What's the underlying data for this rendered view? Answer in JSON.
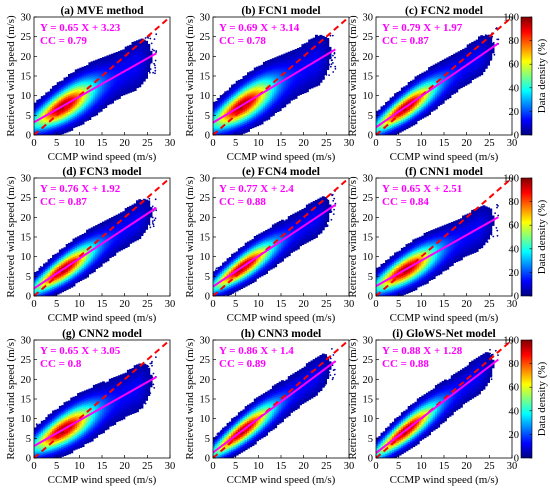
{
  "figure": {
    "colorbar_label": "Data density (%)",
    "colorbar_ticks": [
      "0",
      "20",
      "40",
      "60",
      "80",
      "100"
    ],
    "colorbar_range": [
      0,
      100
    ],
    "colormap": [
      "#00007f",
      "#0000ff",
      "#007fff",
      "#00ffff",
      "#7fff7f",
      "#ffff00",
      "#ff7f00",
      "#ff0000",
      "#7f0000"
    ],
    "fit_line_color": "#ff00ff",
    "one_to_one_color": "#ff0000",
    "annotation_color": "#ff00ff"
  },
  "chart_data": [
    {
      "type": "scatter",
      "title": "(a) MVE method",
      "xlabel": "CCMP wind speed (m/s)",
      "ylabel": "Retrieved wind speed (m/s)",
      "xlim": [
        0,
        30
      ],
      "ylim": [
        0,
        30
      ],
      "xticks": [
        "0",
        "5",
        "10",
        "15",
        "20",
        "25",
        "30"
      ],
      "yticks": [
        "0",
        "5",
        "10",
        "15",
        "20",
        "25",
        "30"
      ],
      "fit": {
        "slope": 0.65,
        "intercept": 3.23
      },
      "eq_text": "Y = 0.65 X + 3.23",
      "cc_text": "CC = 0.79",
      "spread": 2.6
    },
    {
      "type": "scatter",
      "title": "(b) FCN1 model",
      "xlabel": "CCMP wind speed (m/s)",
      "ylabel": "Retrieved wind speed (m/s)",
      "xlim": [
        0,
        30
      ],
      "ylim": [
        0,
        30
      ],
      "xticks": [
        "0",
        "5",
        "10",
        "15",
        "20",
        "25",
        "30"
      ],
      "yticks": [
        "0",
        "5",
        "10",
        "15",
        "20",
        "25",
        "30"
      ],
      "fit": {
        "slope": 0.69,
        "intercept": 3.14
      },
      "eq_text": "Y = 0.69 X + 3.14",
      "cc_text": "CC = 0.78",
      "spread": 2.7
    },
    {
      "type": "scatter",
      "title": "(c) FCN2 model",
      "xlabel": "CCMP wind speed (m/s)",
      "ylabel": "Retrieved wind speed (m/s)",
      "xlim": [
        0,
        30
      ],
      "ylim": [
        0,
        30
      ],
      "xticks": [
        "0",
        "5",
        "10",
        "15",
        "20",
        "25",
        "30"
      ],
      "yticks": [
        "0",
        "5",
        "10",
        "15",
        "20",
        "25",
        "30"
      ],
      "fit": {
        "slope": 0.79,
        "intercept": 1.97
      },
      "eq_text": "Y = 0.79 X + 1.97",
      "cc_text": "CC = 0.87",
      "spread": 2.1
    },
    {
      "type": "scatter",
      "title": "(d) FCN3 model",
      "xlabel": "CCMP wind speed (m/s)",
      "ylabel": "Retrieved wind speed (m/s)",
      "xlim": [
        0,
        30
      ],
      "ylim": [
        0,
        30
      ],
      "xticks": [
        "0",
        "5",
        "10",
        "15",
        "20",
        "25",
        "30"
      ],
      "yticks": [
        "0",
        "5",
        "10",
        "15",
        "20",
        "25",
        "30"
      ],
      "fit": {
        "slope": 0.76,
        "intercept": 1.92
      },
      "eq_text": "Y = 0.76 X + 1.92",
      "cc_text": "CC = 0.87",
      "spread": 2.1
    },
    {
      "type": "scatter",
      "title": "(e) FCN4 model",
      "xlabel": "CCMP wind speed (m/s)",
      "ylabel": "Retrieved wind speed (m/s)",
      "xlim": [
        0,
        30
      ],
      "ylim": [
        0,
        30
      ],
      "xticks": [
        "0",
        "5",
        "10",
        "15",
        "20",
        "25",
        "30"
      ],
      "yticks": [
        "0",
        "5",
        "10",
        "15",
        "20",
        "25",
        "30"
      ],
      "fit": {
        "slope": 0.77,
        "intercept": 2.4
      },
      "eq_text": "Y = 0.77 X + 2.4",
      "cc_text": "CC = 0.88",
      "spread": 2.0
    },
    {
      "type": "scatter",
      "title": "(f) CNN1 model",
      "xlabel": "CCMP wind speed (m/s)",
      "ylabel": "Retrieved wind speed (m/s)",
      "xlim": [
        0,
        30
      ],
      "ylim": [
        0,
        30
      ],
      "xticks": [
        "0",
        "5",
        "10",
        "15",
        "20",
        "25",
        "30"
      ],
      "yticks": [
        "0",
        "5",
        "10",
        "15",
        "20",
        "25",
        "30"
      ],
      "fit": {
        "slope": 0.65,
        "intercept": 2.51
      },
      "eq_text": "Y = 0.65 X + 2.51",
      "cc_text": "CC = 0.84",
      "spread": 2.3
    },
    {
      "type": "scatter",
      "title": "(g) CNN2 model",
      "xlabel": "CCMP wind speed (m/s)",
      "ylabel": "Retrieved wind speed (m/s)",
      "xlim": [
        0,
        30
      ],
      "ylim": [
        0,
        30
      ],
      "xticks": [
        "0",
        "5",
        "10",
        "15",
        "20",
        "25",
        "30"
      ],
      "yticks": [
        "0",
        "5",
        "10",
        "15",
        "20",
        "25",
        "30"
      ],
      "fit": {
        "slope": 0.65,
        "intercept": 3.05
      },
      "eq_text": "Y = 0.65 X + 3.05",
      "cc_text": "CC = 0.8",
      "spread": 2.5
    },
    {
      "type": "scatter",
      "title": "(h) CNN3 model",
      "xlabel": "CCMP wind speed (m/s)",
      "ylabel": "Retrieved wind speed (m/s)",
      "xlim": [
        0,
        30
      ],
      "ylim": [
        0,
        30
      ],
      "xticks": [
        "0",
        "5",
        "10",
        "15",
        "20",
        "25",
        "30"
      ],
      "yticks": [
        "0",
        "5",
        "10",
        "15",
        "20",
        "25",
        "30"
      ],
      "fit": {
        "slope": 0.86,
        "intercept": 1.4
      },
      "eq_text": "Y = 0.86 X + 1.4",
      "cc_text": "CC = 0.89",
      "spread": 2.0
    },
    {
      "type": "scatter",
      "title": "(i) GloWS-Net model",
      "xlabel": "CCMP wind speed (m/s)",
      "ylabel": "Retrieved wind speed (m/s)",
      "xlim": [
        0,
        30
      ],
      "ylim": [
        0,
        30
      ],
      "xticks": [
        "0",
        "5",
        "10",
        "15",
        "20",
        "25",
        "30"
      ],
      "yticks": [
        "0",
        "5",
        "10",
        "15",
        "20",
        "25",
        "30"
      ],
      "fit": {
        "slope": 0.88,
        "intercept": 1.28
      },
      "eq_text": "Y = 0.88 X + 1.28",
      "cc_text": "CC = 0.88",
      "spread": 2.0
    }
  ]
}
